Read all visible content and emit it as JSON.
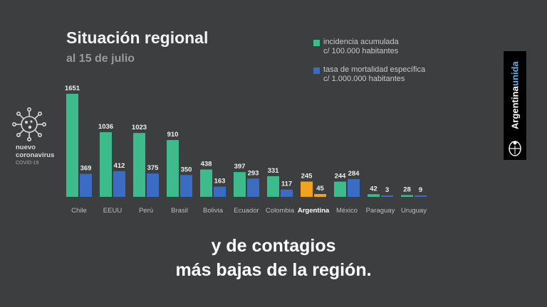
{
  "header": {
    "title": "Situación regional",
    "subtitle": "al 15 de julio"
  },
  "legend": [
    {
      "line1": "incidencia acumulada",
      "line2": "c/ 100.000 habitantes",
      "color": "#3dbb8c"
    },
    {
      "line1": "tasa de mortalidad específica",
      "line2": "c/ 1.000.000 habitantes",
      "color": "#3b6cc4"
    }
  ],
  "virus_badge": {
    "icon": "virus-icon",
    "line1": "nuevo",
    "line2": "coronavirus",
    "line3": "COVID-19"
  },
  "brand": {
    "part1": "Argentina",
    "part2": "unida",
    "emblem_icon": "coat-of-arms-icon"
  },
  "caption": {
    "line1": "y de contagios",
    "line2": "más bajas de la región."
  },
  "colors": {
    "background": "#3d3e40",
    "incidence": "#3dbb8c",
    "mortality": "#3b6cc4",
    "highlight": "#f0a321",
    "brand_accent": "#5fb0e6"
  },
  "chart_data": {
    "type": "bar",
    "categories": [
      "Chile",
      "EEUU",
      "Perú",
      "Brasil",
      "Bolivia",
      "Ecuador",
      "Colombia",
      "Argentina",
      "México",
      "Paraguay",
      "Uruguay"
    ],
    "highlight_category": "Argentina",
    "series": [
      {
        "name": "incidencia acumulada c/ 100.000 habitantes",
        "values": [
          1651,
          1036,
          1023,
          910,
          438,
          397,
          331,
          245,
          244,
          42,
          28
        ]
      },
      {
        "name": "tasa de mortalidad específica c/ 1.000.000 habitantes",
        "values": [
          369,
          412,
          375,
          350,
          163,
          293,
          117,
          45,
          284,
          3,
          9
        ]
      }
    ],
    "data_labels": true,
    "grid": false,
    "legend_position": "top-right"
  }
}
